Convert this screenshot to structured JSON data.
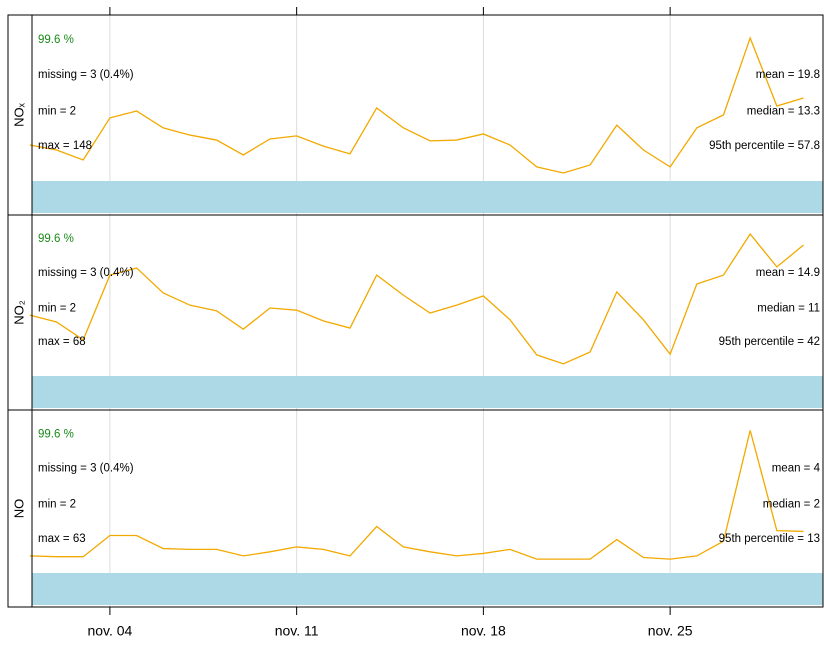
{
  "chart_data": {
    "type": "line",
    "x": [
      1,
      2,
      3,
      4,
      5,
      6,
      7,
      8,
      9,
      10,
      11,
      12,
      13,
      14,
      15,
      16,
      17,
      18,
      19,
      20,
      21,
      22,
      23,
      24,
      25,
      26,
      27,
      28,
      29,
      30
    ],
    "xlim": [
      1.08,
      30.73
    ],
    "xticks": [
      {
        "value": 4,
        "label": "nov. 04"
      },
      {
        "value": 11,
        "label": "nov. 11"
      },
      {
        "value": 18,
        "label": "nov. 18"
      },
      {
        "value": 25,
        "label": "nov. 25"
      }
    ],
    "grid": true,
    "line_color": "#f2a900",
    "capture_color": "#add8e6",
    "capture_text_color": "#1a8a1a",
    "series": [
      {
        "name": "NOₓ",
        "ylim": [
          0,
          60
        ],
        "values": [
          13.0,
          11.2,
          7.6,
          22.8,
          25.3,
          19.2,
          16.6,
          14.8,
          9.4,
          15.2,
          16.3,
          12.6,
          9.8,
          26.4,
          19.2,
          14.5,
          14.8,
          17.0,
          13.0,
          5.1,
          2.9,
          5.8,
          20.2,
          11.2,
          5.1,
          19.2,
          23.9,
          51.7,
          27.1,
          30.0
        ],
        "stats": {
          "capture": "99.6 %",
          "missing": "missing = 3 (0.4%)",
          "min": "min = 2",
          "max": "max = 148",
          "mean": "mean = 19.8",
          "median": "median = 13.3",
          "p95": "95th percentile = 57.8"
        }
      },
      {
        "name": "NO₂",
        "ylim": [
          0,
          45
        ],
        "values": [
          17.0,
          15.1,
          10.1,
          28.2,
          30.2,
          23.2,
          19.8,
          18.2,
          13.1,
          19.0,
          18.4,
          15.4,
          13.4,
          28.2,
          22.6,
          17.6,
          19.8,
          22.4,
          15.7,
          5.9,
          3.4,
          6.7,
          23.5,
          15.7,
          6.1,
          25.7,
          28.2,
          39.7,
          30.5,
          36.6
        ],
        "stats": {
          "capture": "99.6 %",
          "missing": "missing = 3 (0.4%)",
          "min": "min = 2",
          "max": "max = 68",
          "mean": "mean = 14.9",
          "median": "median = 11",
          "p95": "95th percentile = 42"
        }
      },
      {
        "name": "NO",
        "ylim": [
          0,
          20
        ],
        "values": [
          2.1,
          2.0,
          2.0,
          4.6,
          4.6,
          3.0,
          2.9,
          2.9,
          2.1,
          2.6,
          3.2,
          2.9,
          2.1,
          5.7,
          3.2,
          2.6,
          2.1,
          2.4,
          2.9,
          1.7,
          1.7,
          1.7,
          4.1,
          1.9,
          1.7,
          2.1,
          3.9,
          17.5,
          5.2,
          5.1
        ],
        "stats": {
          "capture": "99.6 %",
          "missing": "missing = 3 (0.4%)",
          "min": "min = 2",
          "max": "max = 63",
          "mean": "mean = 4",
          "median": "median = 2",
          "p95": "95th percentile = 13"
        }
      }
    ]
  }
}
